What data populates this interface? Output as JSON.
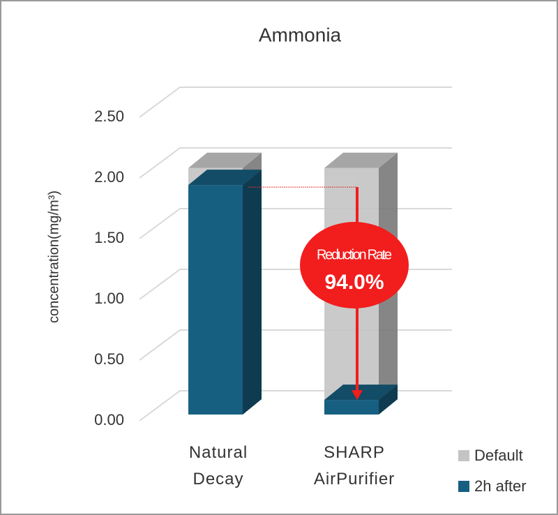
{
  "chart_data": {
    "type": "bar3d",
    "title": "Ammonia",
    "y_label": "concentration(mg/m³)",
    "categories": [
      "Natural Decay",
      "SHARP AirPurifier"
    ],
    "series": [
      {
        "name": "Default",
        "color": "#c4c4c4",
        "values": [
          2.03,
          2.03
        ]
      },
      {
        "name": "2h after",
        "color": "#175f80",
        "values": [
          1.89,
          0.12
        ]
      }
    ],
    "ylim": [
      0,
      2.5
    ],
    "yticks": [
      {
        "value": 0,
        "label": "0.00"
      },
      {
        "value": 0.5,
        "label": "0.50"
      },
      {
        "value": 1,
        "label": "1.00"
      },
      {
        "value": 1.5,
        "label": "1.50"
      },
      {
        "value": 2,
        "label": "2.00"
      },
      {
        "value": 2.5,
        "label": "2.50"
      }
    ],
    "grid": true,
    "legend": "bottom-right",
    "annotation": {
      "title": "Reduction Rate",
      "value": "94.0%"
    }
  }
}
